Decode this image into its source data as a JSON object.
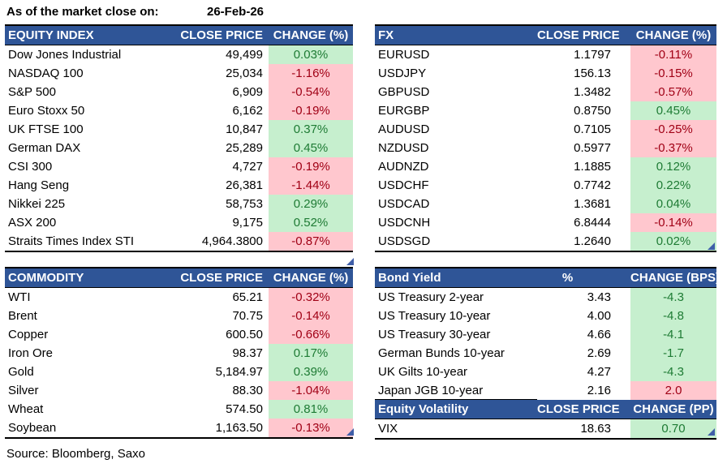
{
  "meta": {
    "as_of_label": "As of the market close on:",
    "as_of_date": "26-Feb-26",
    "source": "Source: Bloomberg, Saxo"
  },
  "colors": {
    "header_bg": "#2F5597",
    "header_text": "#FFFFFF",
    "positive_fill": "#C6EFCE",
    "positive_text": "#1E7B34",
    "negative_fill": "#FFC7CE",
    "negative_text": "#A00015",
    "border": "#000000",
    "corner_marker": "#3F5EA8"
  },
  "icons": {
    "table_corner": "small blue right-angle triangle marking bottom-right of an Excel table range"
  },
  "tables": [
    {
      "id": "equity-index",
      "headers": [
        "EQUITY INDEX",
        "CLOSE PRICE",
        "CHANGE (%)"
      ],
      "rows": [
        {
          "name": "Dow Jones Industrial",
          "value": "49,499",
          "change": "0.03%",
          "tone": "green"
        },
        {
          "name": "NASDAQ 100",
          "value": "25,034",
          "change": "-1.16%",
          "tone": "red"
        },
        {
          "name": "S&P 500",
          "value": "6,909",
          "change": "-0.54%",
          "tone": "red"
        },
        {
          "name": "Euro Stoxx 50",
          "value": "6,162",
          "change": "-0.19%",
          "tone": "red"
        },
        {
          "name": "UK FTSE 100",
          "value": "10,847",
          "change": "0.37%",
          "tone": "green"
        },
        {
          "name": "German DAX",
          "value": "25,289",
          "change": "0.45%",
          "tone": "green"
        },
        {
          "name": "CSI 300",
          "value": "4,727",
          "change": "-0.19%",
          "tone": "red"
        },
        {
          "name": "Hang Seng",
          "value": "26,381",
          "change": "-1.44%",
          "tone": "red"
        },
        {
          "name": "Nikkei 225",
          "value": "58,753",
          "change": "0.29%",
          "tone": "green"
        },
        {
          "name": "ASX 200",
          "value": "9,175",
          "change": "0.52%",
          "tone": "green"
        },
        {
          "name": "Straits Times Index STI",
          "value": "4,964.3800",
          "change": "-0.87%",
          "tone": "red"
        }
      ]
    },
    {
      "id": "fx",
      "headers": [
        "FX",
        "CLOSE PRICE",
        "CHANGE (%)"
      ],
      "rows": [
        {
          "name": "EURUSD",
          "value": "1.1797",
          "change": "-0.11%",
          "tone": "red"
        },
        {
          "name": "USDJPY",
          "value": "156.13",
          "change": "-0.15%",
          "tone": "red"
        },
        {
          "name": "GBPUSD",
          "value": "1.3482",
          "change": "-0.57%",
          "tone": "red"
        },
        {
          "name": "EURGBP",
          "value": "0.8750",
          "change": "0.45%",
          "tone": "green"
        },
        {
          "name": "AUDUSD",
          "value": "0.7105",
          "change": "-0.25%",
          "tone": "red"
        },
        {
          "name": "NZDUSD",
          "value": "0.5977",
          "change": "-0.37%",
          "tone": "red"
        },
        {
          "name": "AUDNZD",
          "value": "1.1885",
          "change": "0.12%",
          "tone": "green"
        },
        {
          "name": "USDCHF",
          "value": "0.7742",
          "change": "0.22%",
          "tone": "green"
        },
        {
          "name": "USDCAD",
          "value": "1.3681",
          "change": "0.04%",
          "tone": "green"
        },
        {
          "name": "USDCNH",
          "value": "6.8444",
          "change": "-0.14%",
          "tone": "red"
        },
        {
          "name": "USDSGD",
          "value": "1.2640",
          "change": "0.02%",
          "tone": "green"
        }
      ]
    },
    {
      "id": "commodity",
      "headers": [
        "COMMODITY",
        "CLOSE PRICE",
        "CHANGE (%)"
      ],
      "rows": [
        {
          "name": "WTI",
          "value": "65.21",
          "change": "-0.32%",
          "tone": "red"
        },
        {
          "name": "Brent",
          "value": "70.75",
          "change": "-0.14%",
          "tone": "red"
        },
        {
          "name": "Copper",
          "value": "600.50",
          "change": "-0.66%",
          "tone": "red"
        },
        {
          "name": "Iron Ore",
          "value": "98.37",
          "change": "0.17%",
          "tone": "green"
        },
        {
          "name": "Gold",
          "value": "5,184.97",
          "change": "0.39%",
          "tone": "green"
        },
        {
          "name": "Silver",
          "value": "88.30",
          "change": "-1.04%",
          "tone": "red"
        },
        {
          "name": "Wheat",
          "value": "574.50",
          "change": "0.81%",
          "tone": "green"
        },
        {
          "name": "Soybean",
          "value": "1,163.50",
          "change": "-0.13%",
          "tone": "red"
        }
      ]
    },
    {
      "id": "bond-yield",
      "headers": [
        "Bond Yield",
        "%",
        "CHANGE (BPS)"
      ],
      "rows": [
        {
          "name": "US Treasury 2-year",
          "value": "3.43",
          "change": "-4.3",
          "tone": "green"
        },
        {
          "name": "US Treasury 10-year",
          "value": "4.00",
          "change": "-4.8",
          "tone": "green"
        },
        {
          "name": "US Treasury 30-year",
          "value": "4.66",
          "change": "-4.1",
          "tone": "green"
        },
        {
          "name": "German Bunds 10-year",
          "value": "2.69",
          "change": "-1.7",
          "tone": "green"
        },
        {
          "name": "UK Gilts 10-year",
          "value": "4.27",
          "change": "-4.3",
          "tone": "green"
        },
        {
          "name": "Japan JGB 10-year",
          "value": "2.16",
          "change": "2.0",
          "tone": "red"
        }
      ]
    },
    {
      "id": "equity-volatility",
      "headers": [
        "Equity Volatility",
        "CLOSE PRICE",
        "CHANGE (PP)"
      ],
      "rows": [
        {
          "name": "VIX",
          "value": "18.63",
          "change": "0.70",
          "tone": "green"
        }
      ]
    }
  ]
}
